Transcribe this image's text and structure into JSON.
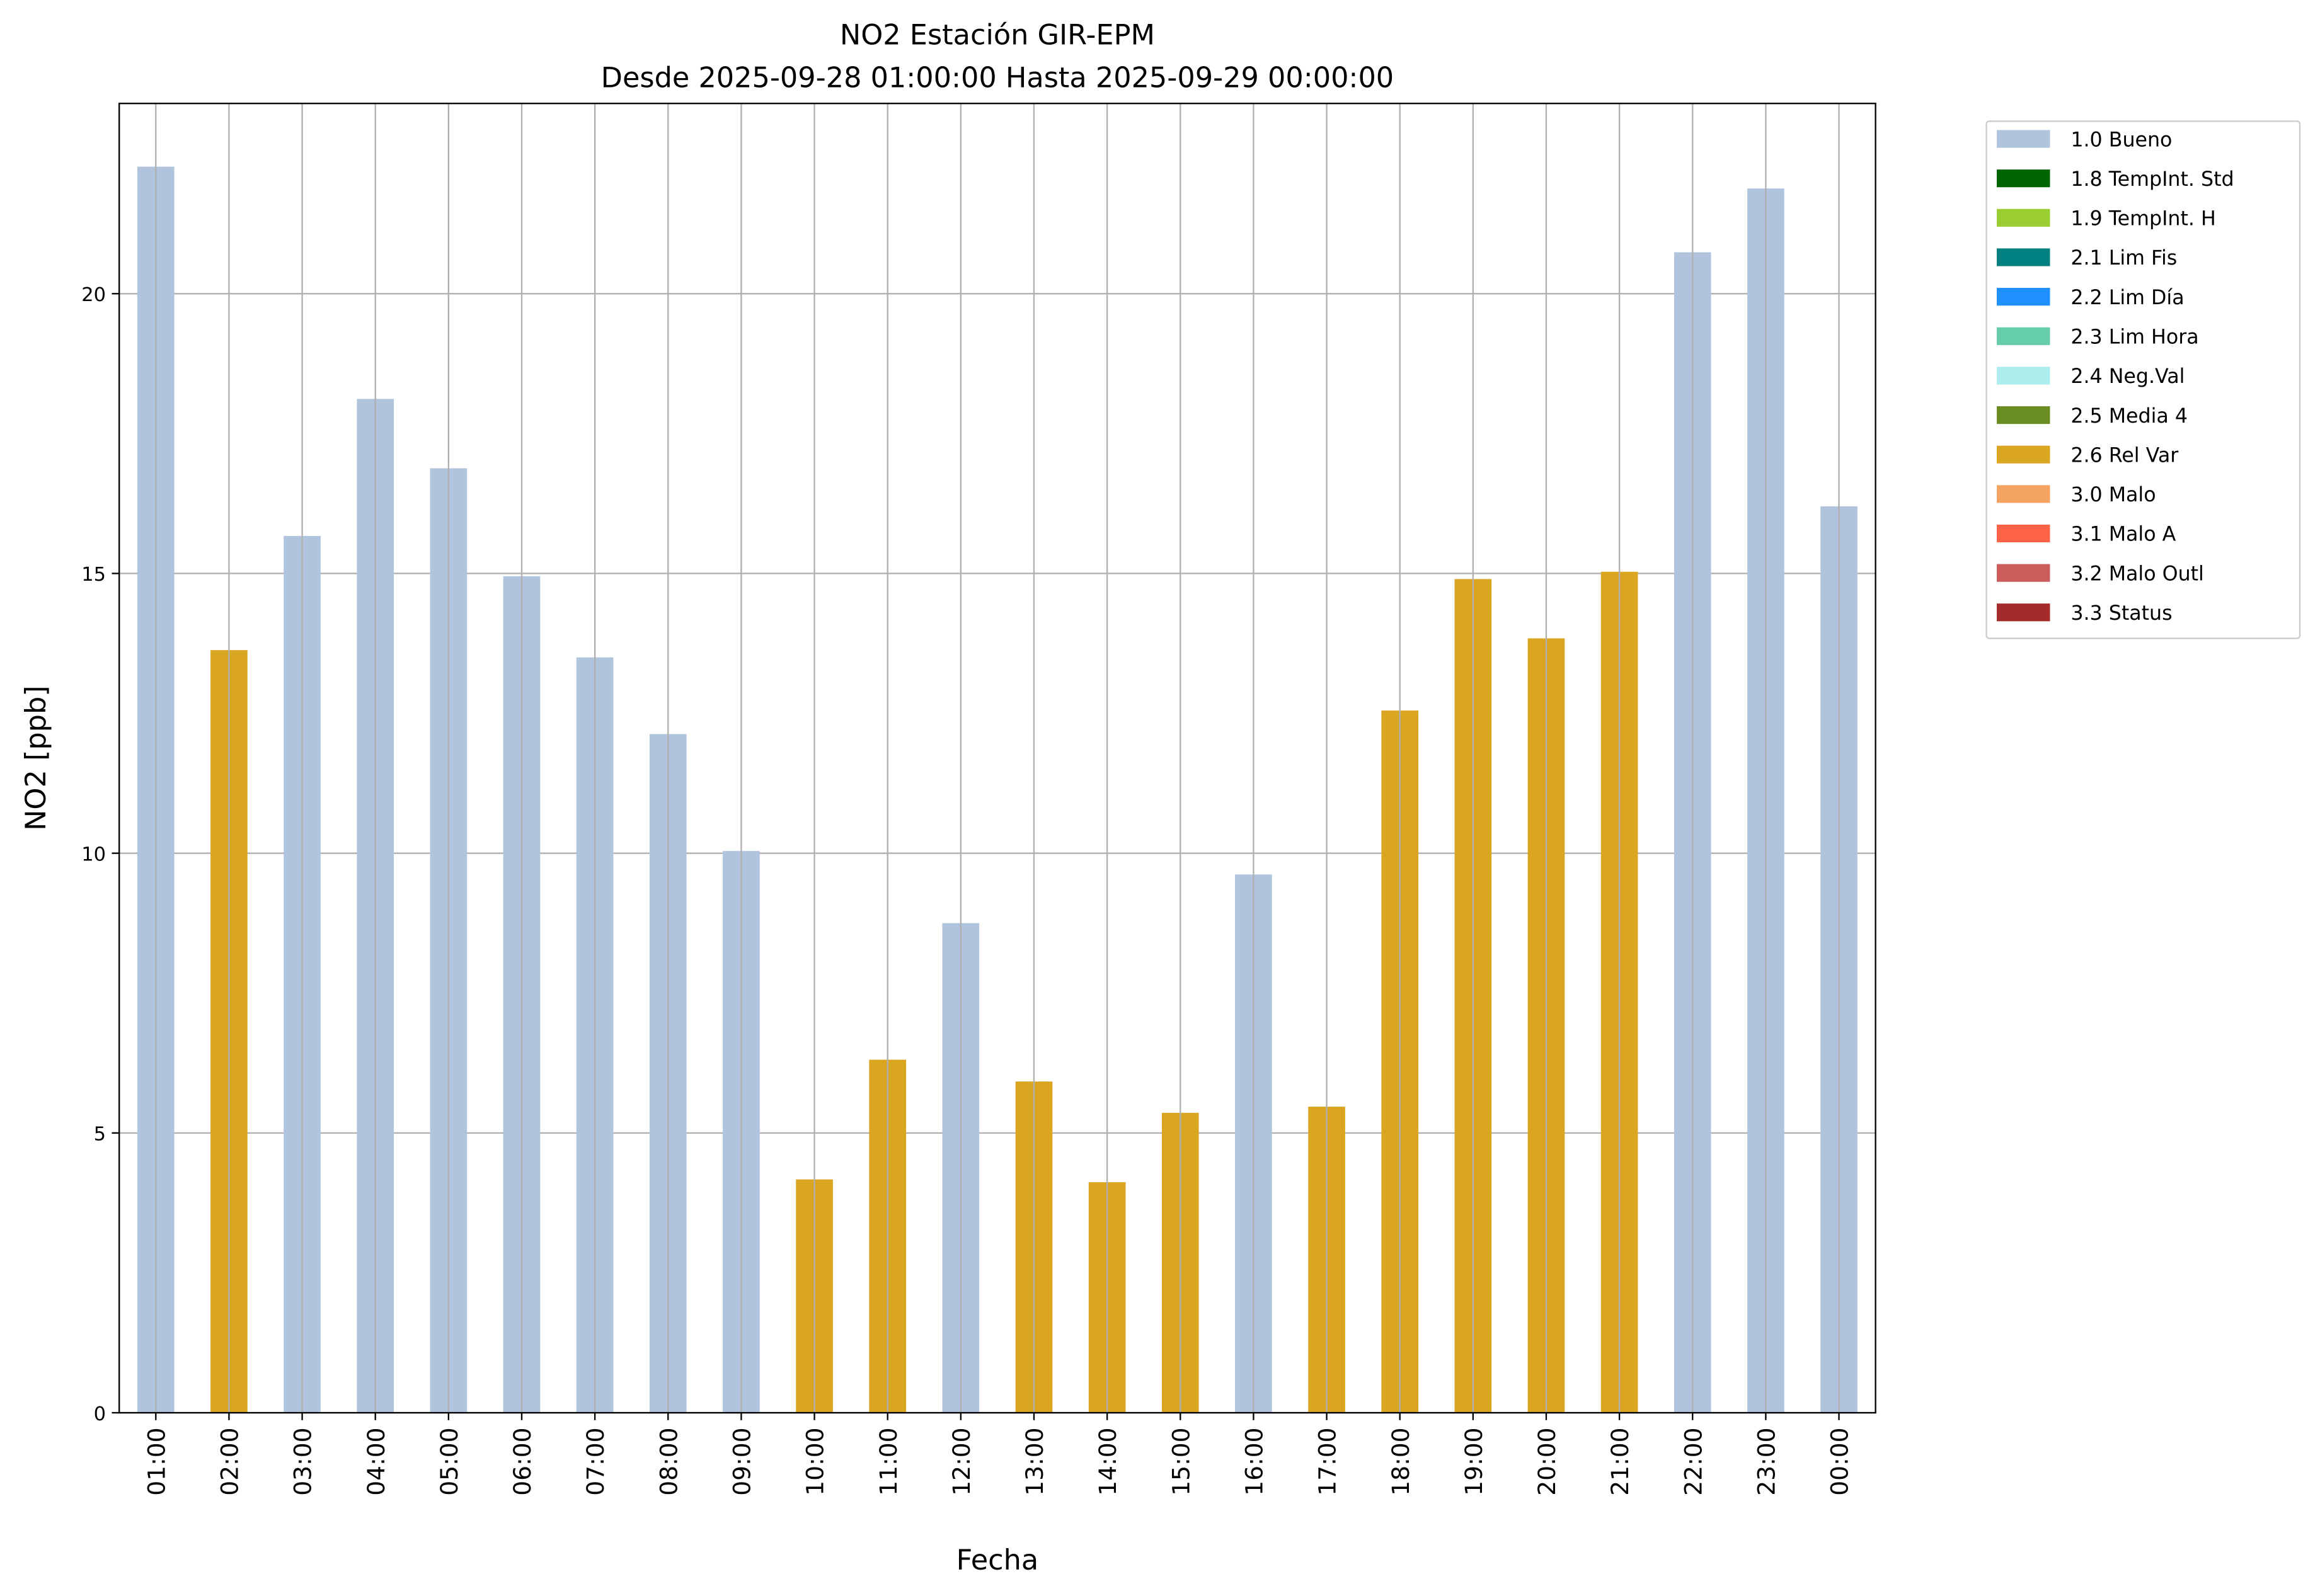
{
  "chart_data": {
    "type": "bar",
    "title": "NO2 Estación GIR-EPM",
    "subtitle": "Desde 2025-09-28 01:00:00 Hasta 2025-09-29 00:00:00",
    "xlabel": "Fecha",
    "ylabel": "NO2 [ppb]",
    "ylim": [
      0,
      23.4
    ],
    "yticks": [
      0,
      5,
      10,
      15,
      20
    ],
    "grid": true,
    "legend_position": "outside-top-right",
    "categories": [
      "01:00",
      "02:00",
      "03:00",
      "04:00",
      "05:00",
      "06:00",
      "07:00",
      "08:00",
      "09:00",
      "10:00",
      "11:00",
      "12:00",
      "13:00",
      "14:00",
      "15:00",
      "16:00",
      "17:00",
      "18:00",
      "19:00",
      "20:00",
      "21:00",
      "22:00",
      "23:00",
      "00:00"
    ],
    "values": [
      22.27,
      13.63,
      15.67,
      18.12,
      16.88,
      14.95,
      13.5,
      12.13,
      10.04,
      4.17,
      6.31,
      8.75,
      5.92,
      4.12,
      5.36,
      9.62,
      5.47,
      12.55,
      14.9,
      13.84,
      15.03,
      20.74,
      21.88,
      16.2
    ],
    "flags": [
      "1.0 Bueno",
      "2.6 Rel Var",
      "1.0 Bueno",
      "1.0 Bueno",
      "1.0 Bueno",
      "1.0 Bueno",
      "1.0 Bueno",
      "1.0 Bueno",
      "1.0 Bueno",
      "2.6 Rel Var",
      "2.6 Rel Var",
      "1.0 Bueno",
      "2.6 Rel Var",
      "2.6 Rel Var",
      "2.6 Rel Var",
      "1.0 Bueno",
      "2.6 Rel Var",
      "2.6 Rel Var",
      "2.6 Rel Var",
      "2.6 Rel Var",
      "2.6 Rel Var",
      "1.0 Bueno",
      "1.0 Bueno",
      "1.0 Bueno"
    ],
    "legend": [
      {
        "name": "1.0 Bueno",
        "color": "#b0c4de"
      },
      {
        "name": "1.8 TempInt. Std",
        "color": "#006400"
      },
      {
        "name": "1.9 TempInt. H",
        "color": "#9acd32"
      },
      {
        "name": "2.1 Lim Fis",
        "color": "#008080"
      },
      {
        "name": "2.2 Lim Día",
        "color": "#1e90ff"
      },
      {
        "name": "2.3 Lim Hora",
        "color": "#66cdaa"
      },
      {
        "name": "2.4 Neg.Val",
        "color": "#afeeee"
      },
      {
        "name": "2.5 Media 4",
        "color": "#6b8e23"
      },
      {
        "name": "2.6 Rel Var",
        "color": "#daa520"
      },
      {
        "name": "3.0 Malo",
        "color": "#f4a460"
      },
      {
        "name": "3.1 Malo A",
        "color": "#ff6347"
      },
      {
        "name": "3.2 Malo Outl",
        "color": "#cd5c5c"
      },
      {
        "name": "3.3 Status",
        "color": "#a52a2a"
      }
    ]
  }
}
